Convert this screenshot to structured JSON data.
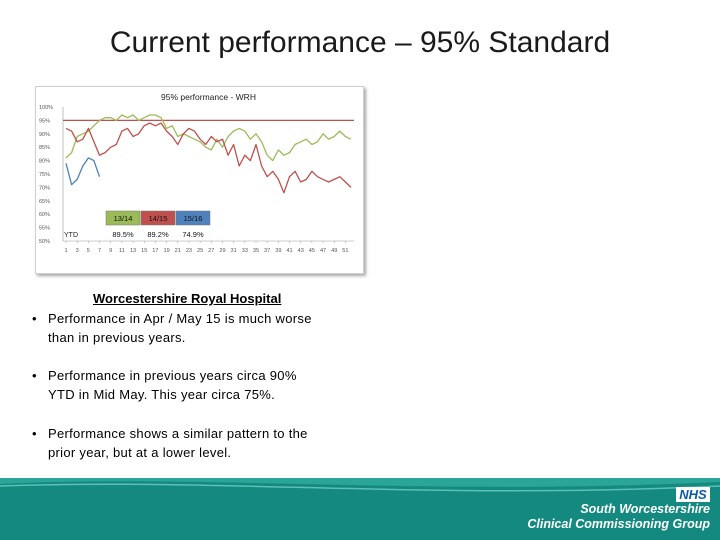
{
  "slide": {
    "title": "Current performance – 95% Standard",
    "subheading": "Worcestershire Royal Hospital",
    "bullets": [
      "Performance in Apr / May 15 is much worse than in previous years.",
      "Performance in previous years circa 90% YTD in Mid May. This year circa 75%.",
      "Performance shows a similar pattern to the prior year, but at a lower level."
    ],
    "bullet_char": "•"
  },
  "footer": {
    "nhs_logo_text": "NHS",
    "org_line1": "South Worcestershire",
    "org_line2": "Clinical Commissioning Group",
    "background_color": "#13897f"
  },
  "chart_data": {
    "type": "line",
    "title": "95% performance - WRH",
    "ylim": [
      50,
      100
    ],
    "y_ticks": [
      "50%",
      "55%",
      "60%",
      "65%",
      "70%",
      "75%",
      "80%",
      "85%",
      "90%",
      "95%",
      "100%"
    ],
    "x_ticks": [
      "1",
      "3",
      "5",
      "7",
      "9",
      "11",
      "13",
      "15",
      "17",
      "19",
      "21",
      "23",
      "25",
      "27",
      "29",
      "31",
      "33",
      "35",
      "37",
      "39",
      "41",
      "43",
      "45",
      "47",
      "49",
      "51"
    ],
    "target": 95,
    "target_color": "#c0504d",
    "series": [
      {
        "name": "13/14",
        "color": "#9bbb59",
        "values": [
          81,
          83,
          89,
          90,
          91,
          93,
          95,
          96,
          96,
          95,
          97,
          96,
          97,
          95,
          96,
          97,
          97,
          96,
          92,
          93,
          89,
          90,
          89,
          88,
          87,
          85,
          84,
          88,
          85,
          89,
          91,
          92,
          91,
          88,
          90,
          87,
          82,
          80,
          84,
          82,
          83,
          86,
          87,
          88,
          86,
          87,
          90,
          88,
          89,
          91,
          89,
          88
        ]
      },
      {
        "name": "14/15",
        "color": "#c0504d",
        "values": [
          92,
          91,
          87,
          88,
          92,
          87,
          82,
          83,
          85,
          86,
          91,
          92,
          89,
          90,
          93,
          94,
          93,
          94,
          91,
          89,
          86,
          90,
          92,
          91,
          88,
          86,
          89,
          87,
          88,
          82,
          86,
          78,
          82,
          80,
          86,
          78,
          74,
          76,
          73,
          68,
          74,
          76,
          72,
          73,
          76,
          74,
          73,
          72,
          73,
          74,
          72,
          70
        ]
      },
      {
        "name": "15/16",
        "color": "#4f81bd",
        "values": [
          79,
          71,
          73,
          78,
          81,
          80,
          74
        ]
      }
    ],
    "ytd_label": "YTD",
    "ytd_table": [
      {
        "year": "13/14",
        "value": "89.5%",
        "color": "#9bbb59"
      },
      {
        "year": "14/15",
        "value": "89.2%",
        "color": "#c0504d"
      },
      {
        "year": "15/16",
        "value": "74.9%",
        "color": "#4f81bd"
      }
    ]
  }
}
